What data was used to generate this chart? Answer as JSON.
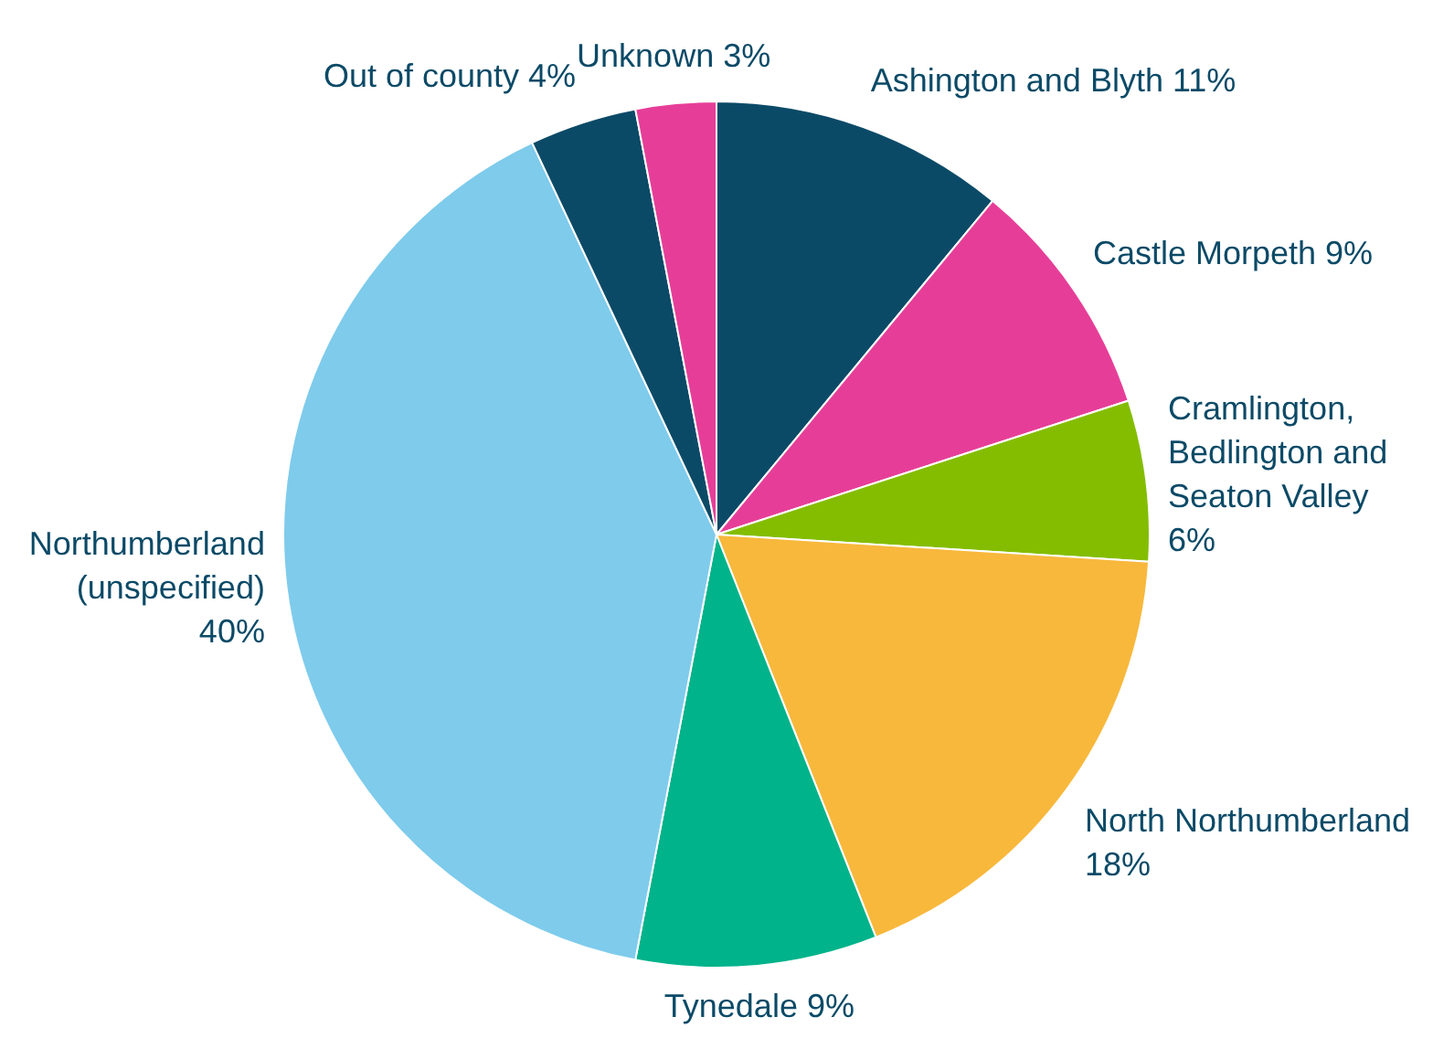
{
  "chart_data": {
    "type": "pie",
    "categories": [
      "Ashington and Blyth",
      "Castle Morpeth",
      "Cramlington, Bedlington and Seaton Valley",
      "North Northumberland",
      "Tynedale",
      "Northumberland (unspecified)",
      "Out of county",
      "Unknown"
    ],
    "values": [
      11,
      9,
      6,
      18,
      9,
      40,
      4,
      3
    ],
    "value_labels": [
      "11%",
      "9%",
      "6%",
      "18%",
      "9%",
      "40%",
      "4%",
      "3%"
    ],
    "colors": [
      "#0b4a67",
      "#e63e98",
      "#84bd00",
      "#f8b83c",
      "#00b38a",
      "#7ecbec",
      "#0b4a67",
      "#e63e98"
    ],
    "legend": false
  }
}
